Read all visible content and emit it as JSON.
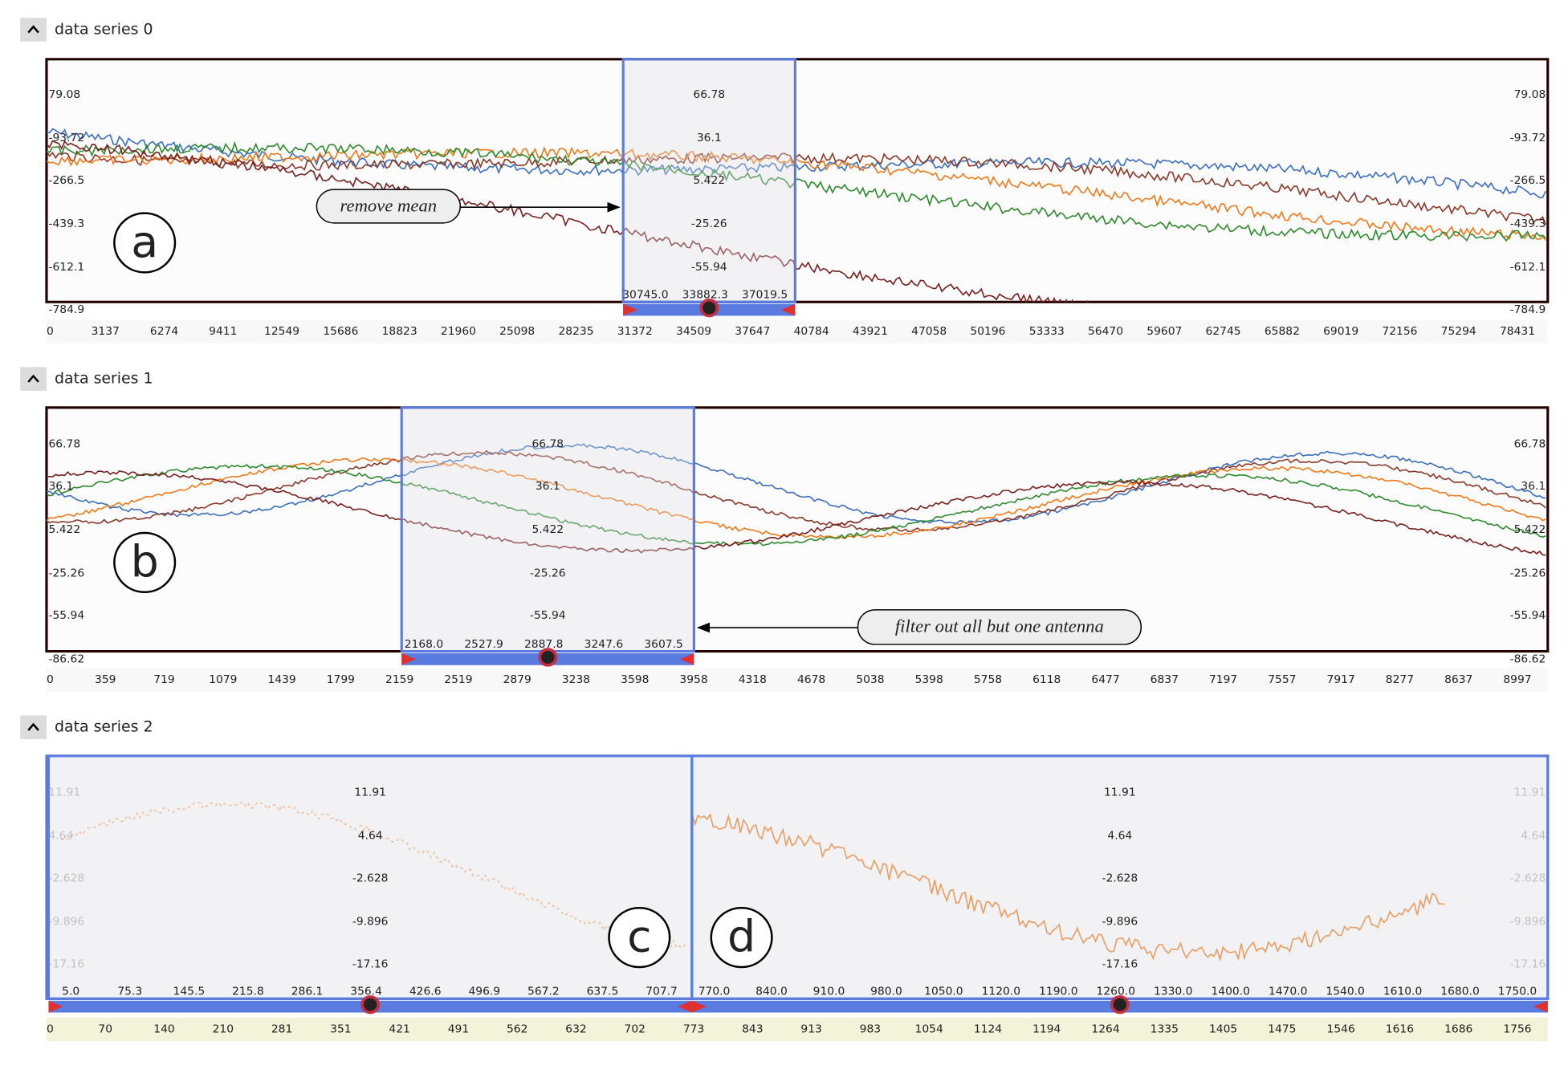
{
  "panels": [
    {
      "title": "data series 0",
      "y_labels": [
        "79.08",
        "-93.72",
        "-266.5",
        "-439.3",
        "-612.1",
        "-784.9"
      ],
      "x_ticks": [
        "0",
        "3137",
        "6274",
        "9411",
        "12549",
        "15686",
        "18823",
        "21960",
        "25098",
        "28235",
        "31372",
        "34509",
        "37647",
        "40784",
        "43921",
        "47058",
        "50196",
        "53333",
        "56470",
        "59607",
        "62745",
        "65882",
        "69019",
        "72156",
        "75294",
        "78431"
      ],
      "lenses": [
        {
          "y_labels": [
            "66.78",
            "36.1",
            "5.422",
            "-25.26",
            "-55.94"
          ],
          "x_labels": [
            "30745.0",
            "33882.3",
            "37019.5"
          ]
        }
      ],
      "markers": [
        "a"
      ],
      "annotation": "remove mean"
    },
    {
      "title": "data series 1",
      "y_labels": [
        "66.78",
        "36.1",
        "5.422",
        "-25.26",
        "-55.94",
        "-86.62"
      ],
      "x_ticks": [
        "0",
        "359",
        "719",
        "1079",
        "1439",
        "1799",
        "2159",
        "2519",
        "2879",
        "3238",
        "3598",
        "3958",
        "4318",
        "4678",
        "5038",
        "5398",
        "5758",
        "6118",
        "6477",
        "6837",
        "7197",
        "7557",
        "7917",
        "8277",
        "8637",
        "8997"
      ],
      "lenses": [
        {
          "y_labels": [
            "66.78",
            "36.1",
            "5.422",
            "-25.26",
            "-55.94"
          ],
          "x_labels": [
            "2168.0",
            "2527.9",
            "2887.8",
            "3247.6",
            "3607.5"
          ]
        }
      ],
      "markers": [
        "b"
      ],
      "annotation": "filter out all but one antenna"
    },
    {
      "title": "data series 2",
      "y_labels": [
        "11.91",
        "4.64",
        "-2.628",
        "-9.896",
        "-17.16"
      ],
      "x_ticks": [
        "0",
        "70",
        "140",
        "210",
        "281",
        "351",
        "421",
        "491",
        "562",
        "632",
        "702",
        "773",
        "843",
        "913",
        "983",
        "1054",
        "1124",
        "1194",
        "1264",
        "1335",
        "1405",
        "1475",
        "1546",
        "1616",
        "1686",
        "1756"
      ],
      "lenses": [
        {
          "y_labels": [
            "11.91",
            "4.64",
            "-2.628",
            "-9.896",
            "-17.16"
          ],
          "x_labels": [
            "5.0",
            "75.3",
            "145.5",
            "215.8",
            "286.1",
            "356.4",
            "426.6",
            "496.9",
            "567.2",
            "637.5",
            "707.7"
          ]
        },
        {
          "y_labels": [
            "11.91",
            "4.64",
            "-2.628",
            "-9.896",
            "-17.16"
          ],
          "x_labels": [
            "770.0",
            "840.0",
            "910.0",
            "980.0",
            "1050.0",
            "1120.0",
            "1190.0",
            "1260.0",
            "1330.0",
            "1400.0",
            "1470.0",
            "1540.0",
            "1610.0",
            "1680.0",
            "1750.0"
          ]
        }
      ],
      "markers": [
        "c",
        "d"
      ]
    }
  ]
}
